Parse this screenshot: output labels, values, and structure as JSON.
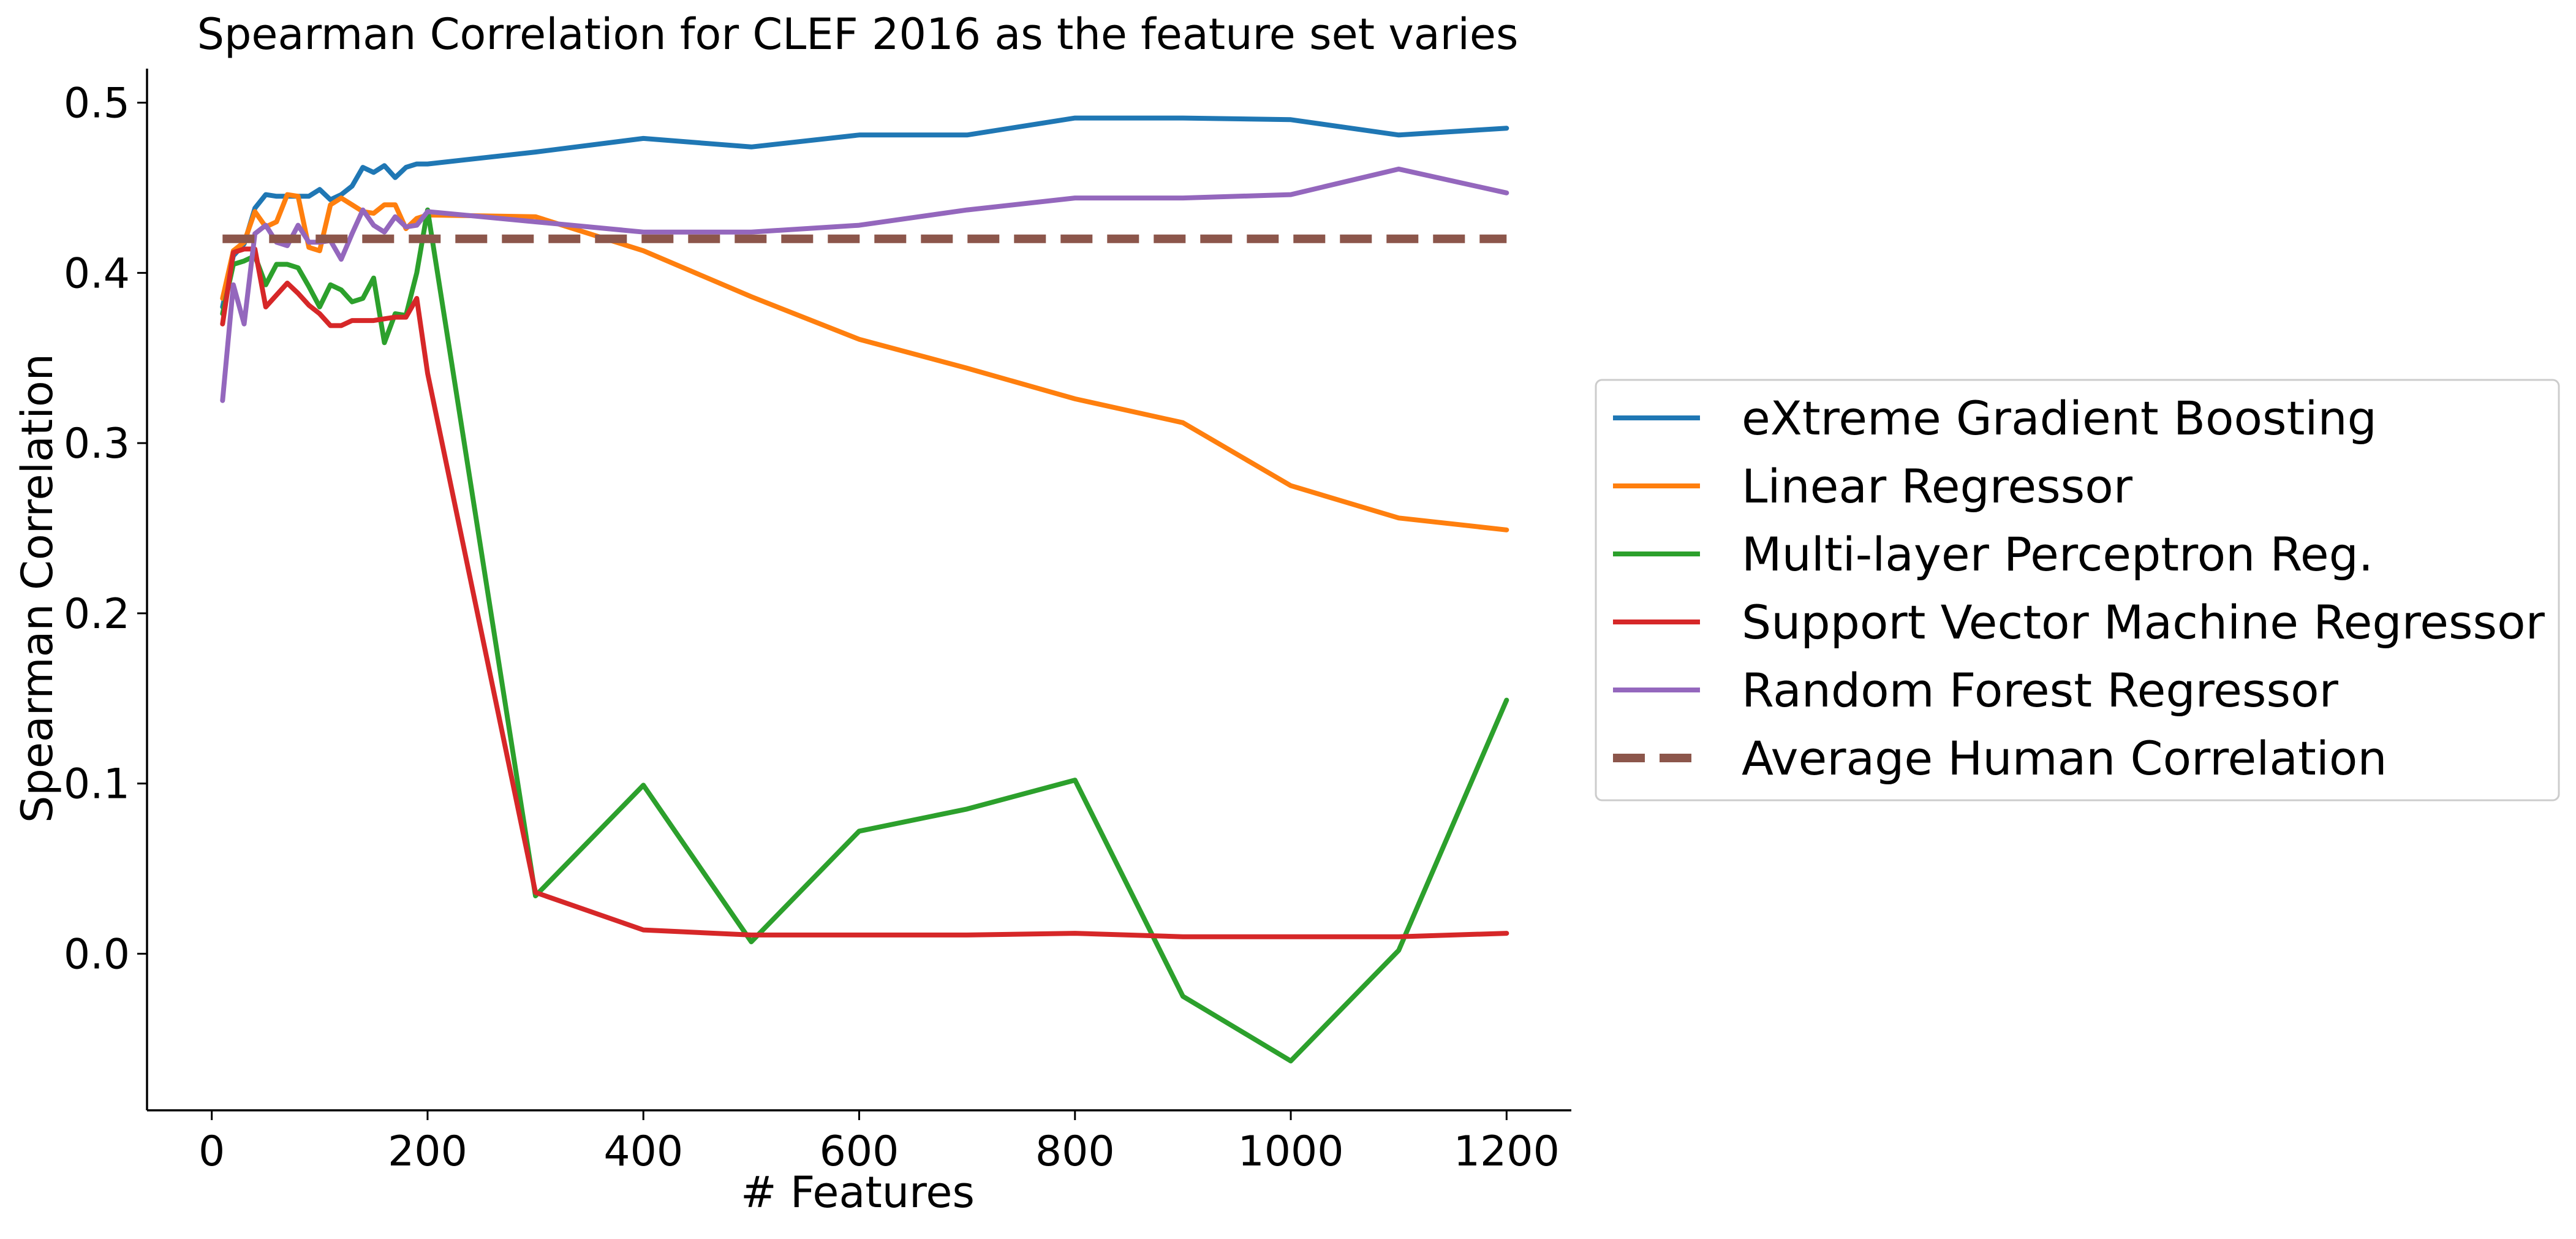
{
  "chart_data": {
    "type": "line",
    "title": "Spearman Correlation for CLEF 2016 as the feature set varies",
    "xlabel": "# Features",
    "ylabel": "Spearman Correlation",
    "xlim": [
      -60,
      1260
    ],
    "ylim": [
      -0.092,
      0.52
    ],
    "xticks": [
      0,
      200,
      400,
      600,
      800,
      1000,
      1200
    ],
    "yticks": [
      0.0,
      0.1,
      0.2,
      0.3,
      0.4,
      0.5
    ],
    "xtick_labels": [
      "0",
      "200",
      "400",
      "600",
      "800",
      "1000",
      "1200"
    ],
    "ytick_labels": [
      "0.0",
      "0.1",
      "0.2",
      "0.3",
      "0.4",
      "0.5"
    ],
    "grid": false,
    "legend_position": "center-right, outside the plot",
    "series": [
      {
        "name": "eXtreme Gradient Boosting",
        "color": "#1f77b4",
        "dashed": false,
        "x": [
          10,
          20,
          30,
          40,
          50,
          60,
          70,
          80,
          90,
          100,
          110,
          120,
          130,
          140,
          150,
          160,
          170,
          180,
          190,
          200,
          300,
          400,
          500,
          600,
          700,
          800,
          900,
          1000,
          1100,
          1200
        ],
        "y": [
          0.38,
          0.41,
          0.417,
          0.438,
          0.446,
          0.445,
          0.445,
          0.445,
          0.445,
          0.449,
          0.443,
          0.446,
          0.451,
          0.462,
          0.459,
          0.463,
          0.456,
          0.462,
          0.464,
          0.464,
          0.471,
          0.479,
          0.474,
          0.481,
          0.481,
          0.491,
          0.491,
          0.49,
          0.481,
          0.485
        ]
      },
      {
        "name": "Linear Regressor",
        "color": "#ff7f0e",
        "dashed": false,
        "x": [
          10,
          20,
          30,
          40,
          50,
          60,
          70,
          80,
          90,
          100,
          110,
          120,
          130,
          140,
          150,
          160,
          170,
          180,
          190,
          200,
          300,
          400,
          500,
          600,
          700,
          800,
          900,
          1000,
          1100,
          1200
        ],
        "y": [
          0.385,
          0.413,
          0.418,
          0.436,
          0.427,
          0.43,
          0.446,
          0.445,
          0.415,
          0.413,
          0.44,
          0.444,
          0.44,
          0.436,
          0.435,
          0.44,
          0.44,
          0.426,
          0.432,
          0.434,
          0.433,
          0.413,
          0.386,
          0.361,
          0.344,
          0.326,
          0.312,
          0.275,
          0.256,
          0.249
        ]
      },
      {
        "name": "Multi-layer Perceptron Reg.",
        "color": "#2ca02c",
        "dashed": false,
        "x": [
          10,
          20,
          30,
          40,
          50,
          60,
          70,
          80,
          90,
          100,
          110,
          120,
          130,
          140,
          150,
          160,
          170,
          180,
          190,
          200,
          300,
          400,
          500,
          600,
          700,
          800,
          900,
          1000,
          1100,
          1200
        ],
        "y": [
          0.376,
          0.405,
          0.407,
          0.41,
          0.393,
          0.405,
          0.405,
          0.403,
          0.392,
          0.38,
          0.393,
          0.39,
          0.383,
          0.385,
          0.397,
          0.359,
          0.376,
          0.375,
          0.4,
          0.437,
          0.034,
          0.099,
          0.007,
          0.072,
          0.085,
          0.102,
          -0.025,
          -0.063,
          0.002,
          0.149
        ]
      },
      {
        "name": "Support Vector Machine Regressor",
        "color": "#d62728",
        "dashed": false,
        "x": [
          10,
          20,
          30,
          40,
          50,
          60,
          70,
          80,
          90,
          100,
          110,
          120,
          130,
          140,
          150,
          160,
          170,
          180,
          190,
          200,
          300,
          400,
          500,
          600,
          700,
          800,
          900,
          1000,
          1100,
          1200
        ],
        "y": [
          0.37,
          0.412,
          0.414,
          0.414,
          0.38,
          0.387,
          0.394,
          0.388,
          0.381,
          0.376,
          0.369,
          0.369,
          0.372,
          0.372,
          0.372,
          0.373,
          0.374,
          0.374,
          0.385,
          0.341,
          0.036,
          0.014,
          0.011,
          0.011,
          0.011,
          0.012,
          0.01,
          0.01,
          0.01,
          0.012
        ]
      },
      {
        "name": "Random Forest Regressor",
        "color": "#9467bd",
        "dashed": false,
        "x": [
          10,
          20,
          30,
          40,
          50,
          60,
          70,
          80,
          90,
          100,
          110,
          120,
          130,
          140,
          150,
          160,
          170,
          180,
          190,
          200,
          300,
          400,
          500,
          600,
          700,
          800,
          900,
          1000,
          1100,
          1200
        ],
        "y": [
          0.325,
          0.393,
          0.37,
          0.423,
          0.428,
          0.418,
          0.416,
          0.428,
          0.418,
          0.418,
          0.419,
          0.408,
          0.423,
          0.437,
          0.428,
          0.424,
          0.433,
          0.427,
          0.428,
          0.436,
          0.43,
          0.424,
          0.424,
          0.428,
          0.437,
          0.444,
          0.444,
          0.446,
          0.461,
          0.447
        ]
      },
      {
        "name": "Average Human Correlation",
        "color": "#8c564b",
        "dashed": true,
        "x": [
          10,
          1200
        ],
        "y": [
          0.42,
          0.42
        ]
      }
    ]
  }
}
